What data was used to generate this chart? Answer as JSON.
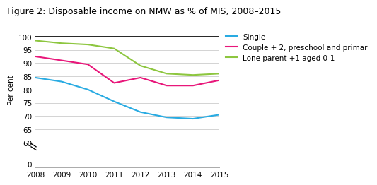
{
  "title": "Figure 2: Disposable income on NMW as % of MIS, 2008–2015",
  "years": [
    2008,
    2009,
    2010,
    2011,
    2012,
    2013,
    2014,
    2015
  ],
  "single": [
    84.5,
    83.0,
    80.0,
    75.5,
    71.5,
    69.5,
    69.0,
    70.5
  ],
  "couple": [
    92.5,
    91.0,
    89.5,
    82.5,
    84.5,
    81.5,
    81.5,
    83.5
  ],
  "lone_parent": [
    98.5,
    97.5,
    97.0,
    95.5,
    89.0,
    86.0,
    85.5,
    86.0
  ],
  "colors": {
    "single": "#29ABE2",
    "couple": "#E8177A",
    "lone_parent": "#8DC63F"
  },
  "legend_labels": {
    "single": "Single",
    "couple": "Couple + 2, preschool and primar",
    "lone_parent": "Lone parent +1 aged 0-1"
  },
  "ylabel": "Per cent",
  "background_color": "#ffffff",
  "title_fontsize": 9,
  "axis_fontsize": 7.5,
  "legend_fontsize": 7.5,
  "yticks_upper": [
    60,
    65,
    70,
    75,
    80,
    85,
    90,
    95,
    100
  ],
  "yticks_lower": [
    0
  ],
  "grid_color": "#cccccc",
  "spine_color": "#aaaaaa"
}
